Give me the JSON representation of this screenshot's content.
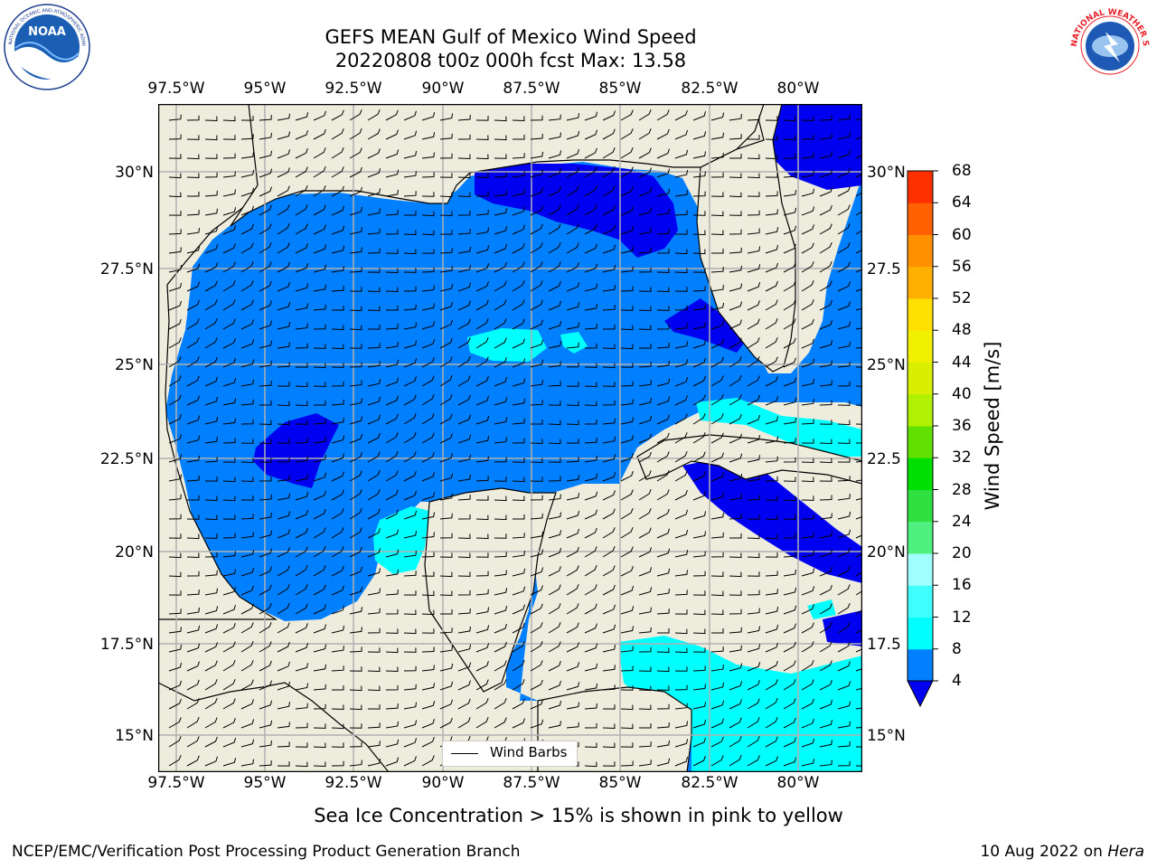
{
  "title": {
    "line1": "GEFS MEAN Gulf of Mexico Wind Speed",
    "line2": "20220808 t00z 000h fcst   Max: 13.58"
  },
  "logos": {
    "left": {
      "icon": "noaa-logo",
      "ring_text": "NATIONAL OCEANIC AND ATMOSPHERIC ADMINISTRATION · U.S. DEPARTMENT OF COMMERCE",
      "center_text": "NOAA"
    },
    "right": {
      "icon": "nws-logo",
      "ring_text": "NATIONAL WEATHER SERVICE"
    }
  },
  "map": {
    "lon_ticks": [
      "97.5°W",
      "95°W",
      "92.5°W",
      "90°W",
      "87.5°W",
      "85°W",
      "82.5°W",
      "80°W"
    ],
    "lat_ticks": [
      "30°N",
      "27.5°N",
      "25°N",
      "22.5°N",
      "20°N",
      "17.5°N",
      "15°N"
    ],
    "lat_ticks_right": [
      "30°N",
      "27.5",
      "25°N",
      "22.5",
      "20°N",
      "17.5",
      "15°N"
    ],
    "colors": {
      "land": "#eeecdc",
      "grid": "#b0b0b0",
      "water_4_8": "#0080ff",
      "water_0_4": "#0000f0",
      "water_8_12": "#00ffff",
      "water_12_16": "#40ffff"
    },
    "legend_label": "Wind Barbs"
  },
  "colorbar": {
    "title": "Wind Speed [m/s]",
    "levels": [
      "4",
      "8",
      "12",
      "16",
      "20",
      "24",
      "28",
      "32",
      "36",
      "40",
      "44",
      "48",
      "52",
      "56",
      "60",
      "64",
      "68"
    ],
    "colors": [
      "#0080ff",
      "#00ffff",
      "#40ffff",
      "#a0ffff",
      "#50f080",
      "#30e040",
      "#00e000",
      "#60e000",
      "#b0f000",
      "#d8f000",
      "#f0f000",
      "#ffe000",
      "#ffb000",
      "#ff9000",
      "#ff6000",
      "#ff3000",
      "#ff0000"
    ],
    "under_color": "#0000f0"
  },
  "note": "Sea Ice Concentration > 15% is shown in pink to yellow",
  "footer": {
    "left": "NCEP/EMC/Verification Post Processing Product Generation Branch",
    "right_date": "10 Aug 2022 on ",
    "right_machine": "Hera"
  }
}
